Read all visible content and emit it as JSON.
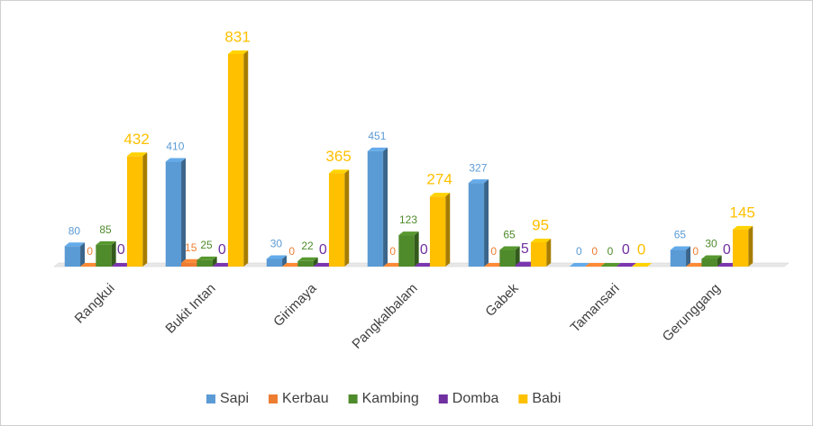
{
  "chart_data": {
    "type": "bar3d",
    "categories": [
      "Rangkui",
      "Bukit Intan",
      "Girimaya",
      "Pangkalbalam",
      "Gabek",
      "Tamansari",
      "Gerunggang"
    ],
    "series": [
      {
        "name": "Sapi",
        "color": "#5b9bd5",
        "values": [
          80,
          410,
          30,
          451,
          327,
          0,
          65
        ]
      },
      {
        "name": "Kerbau",
        "color": "#ed7d31",
        "values": [
          0,
          15,
          0,
          0,
          0,
          0,
          0
        ]
      },
      {
        "name": "Kambing",
        "color": "#4f8a2b",
        "values": [
          85,
          25,
          22,
          123,
          65,
          0,
          30
        ]
      },
      {
        "name": "Domba",
        "color": "#7030a0",
        "values": [
          0,
          0,
          0,
          0,
          5,
          0,
          0
        ]
      },
      {
        "name": "Babi",
        "color": "#ffc000",
        "values": [
          432,
          831,
          365,
          274,
          95,
          0,
          145
        ]
      }
    ],
    "legend": "bottom"
  }
}
